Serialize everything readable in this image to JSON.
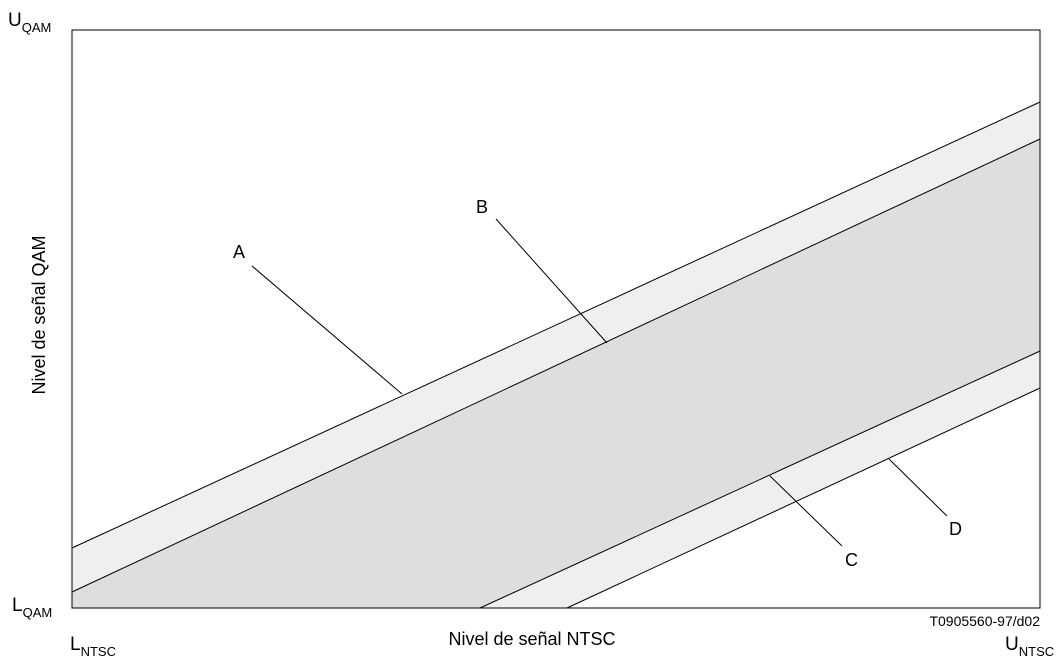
{
  "diagram": {
    "y_axis_label": "Nivel de señal QAM",
    "x_axis_label": "Nivel de señal NTSC",
    "y_top": {
      "main": "U",
      "sub": "QAM"
    },
    "y_bottom": {
      "main": "L",
      "sub": "QAM"
    },
    "x_left": {
      "main": "L",
      "sub": "NTSC"
    },
    "x_right": {
      "main": "U",
      "sub": "NTSC"
    },
    "line_labels": [
      "A",
      "B",
      "C",
      "D"
    ],
    "reference": "T0905560-97/d02",
    "colors": {
      "outer_band": "#efefef",
      "inner_band": "#dedede",
      "lines": "#000000"
    }
  }
}
